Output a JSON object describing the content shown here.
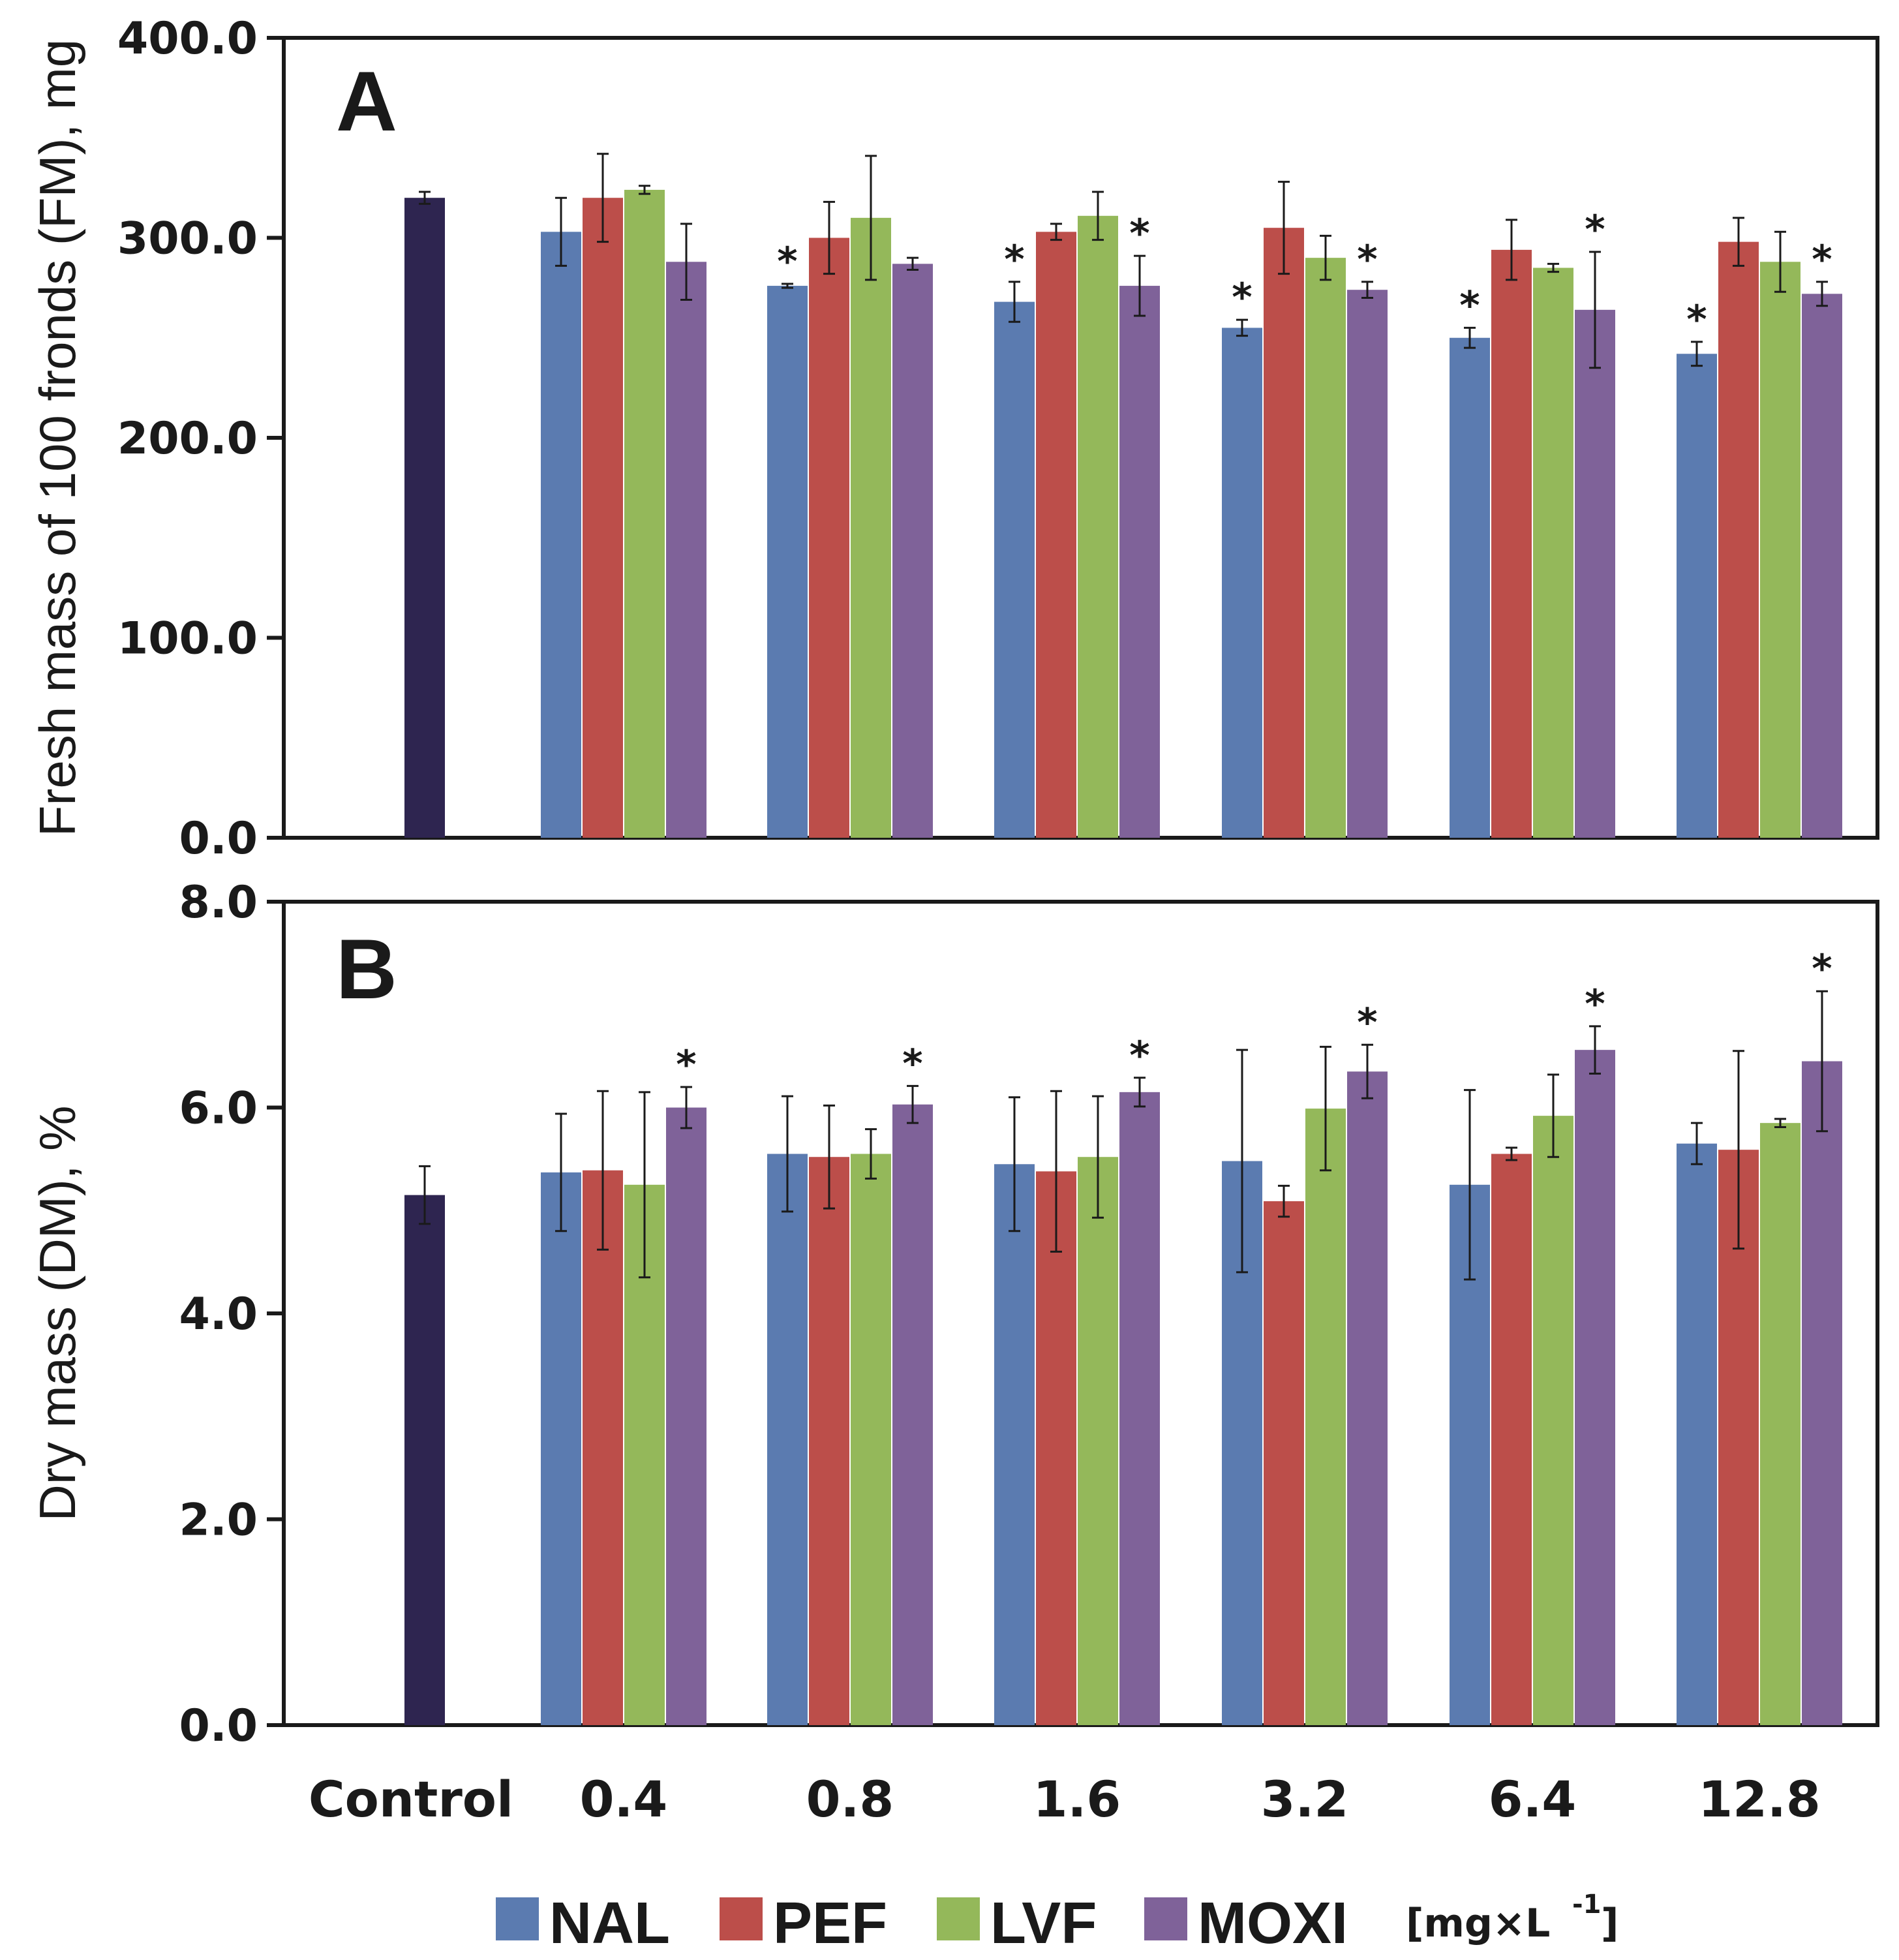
{
  "chart_data": [
    {
      "type": "bar",
      "panel_label": "A",
      "ylabel": "Fresh mass of 100 fronds (FM), mg",
      "ylim": [
        0,
        400
      ],
      "yticks": [
        "0.0",
        "100.0",
        "200.0",
        "300.0",
        "400.0"
      ],
      "categories": [
        "Control",
        "0.4",
        "0.8",
        "1.6",
        "3.2",
        "6.4",
        "12.8"
      ],
      "control": {
        "value": 320,
        "error": 3
      },
      "series": [
        {
          "name": "NAL",
          "values": [
            null,
            303,
            276,
            268,
            255,
            250,
            242
          ],
          "errors": [
            null,
            17,
            1,
            10,
            4,
            5,
            6
          ],
          "significant": [
            false,
            false,
            true,
            true,
            true,
            true,
            true
          ]
        },
        {
          "name": "PEF",
          "values": [
            null,
            320,
            300,
            303,
            305,
            294,
            298
          ],
          "errors": [
            null,
            22,
            18,
            4,
            23,
            15,
            12
          ],
          "significant": [
            false,
            false,
            false,
            false,
            false,
            false,
            false
          ]
        },
        {
          "name": "LVF",
          "values": [
            null,
            324,
            310,
            311,
            290,
            285,
            288
          ],
          "errors": [
            null,
            2,
            31,
            12,
            11,
            2,
            15
          ],
          "significant": [
            false,
            false,
            false,
            false,
            false,
            false,
            false
          ]
        },
        {
          "name": "MOXI",
          "values": [
            null,
            288,
            287,
            276,
            274,
            264,
            272
          ],
          "errors": [
            null,
            19,
            3,
            15,
            4,
            29,
            6
          ],
          "significant": [
            false,
            false,
            false,
            true,
            true,
            true,
            true
          ]
        }
      ]
    },
    {
      "type": "bar",
      "panel_label": "B",
      "ylabel": "Dry mass (DM), %",
      "ylim": [
        0,
        8
      ],
      "yticks": [
        "0.0",
        "2.0",
        "4.0",
        "6.0",
        "8.0"
      ],
      "categories": [
        "Control",
        "0.4",
        "0.8",
        "1.6",
        "3.2",
        "6.4",
        "12.8"
      ],
      "control": {
        "value": 5.15,
        "error": 0.28
      },
      "series": [
        {
          "name": "NAL",
          "values": [
            null,
            5.37,
            5.55,
            5.45,
            5.48,
            5.25,
            5.65
          ],
          "errors": [
            null,
            0.57,
            0.56,
            0.65,
            1.08,
            0.92,
            0.2
          ],
          "significant": [
            false,
            false,
            false,
            false,
            false,
            false,
            false
          ]
        },
        {
          "name": "PEF",
          "values": [
            null,
            5.39,
            5.52,
            5.38,
            5.09,
            5.55,
            5.59
          ],
          "errors": [
            null,
            0.77,
            0.5,
            0.78,
            0.15,
            0.06,
            0.96
          ],
          "significant": [
            false,
            false,
            false,
            false,
            false,
            false,
            false
          ]
        },
        {
          "name": "LVF",
          "values": [
            null,
            5.25,
            5.55,
            5.52,
            5.99,
            5.92,
            5.85
          ],
          "errors": [
            null,
            0.9,
            0.24,
            0.59,
            0.6,
            0.4,
            0.04
          ],
          "significant": [
            false,
            false,
            false,
            false,
            false,
            false,
            false
          ]
        },
        {
          "name": "MOXI",
          "values": [
            null,
            6.0,
            6.03,
            6.15,
            6.35,
            6.56,
            6.45
          ],
          "errors": [
            null,
            0.2,
            0.18,
            0.14,
            0.26,
            0.23,
            0.68
          ],
          "significant": [
            false,
            true,
            true,
            true,
            true,
            true,
            true
          ]
        }
      ]
    }
  ],
  "legend": {
    "items": [
      "NAL",
      "PEF",
      "LVF",
      "MOXI"
    ],
    "unit_main": "[mg×L",
    "unit_sup": "-1",
    "unit_close": "]"
  },
  "significance_marker": "*",
  "colors": {
    "control": "#2e2550",
    "NAL": "#5b7bb0",
    "PEF": "#bc4e4a",
    "LVF": "#94b85a",
    "MOXI": "#7f6299",
    "axis": "#1a1a1a"
  }
}
